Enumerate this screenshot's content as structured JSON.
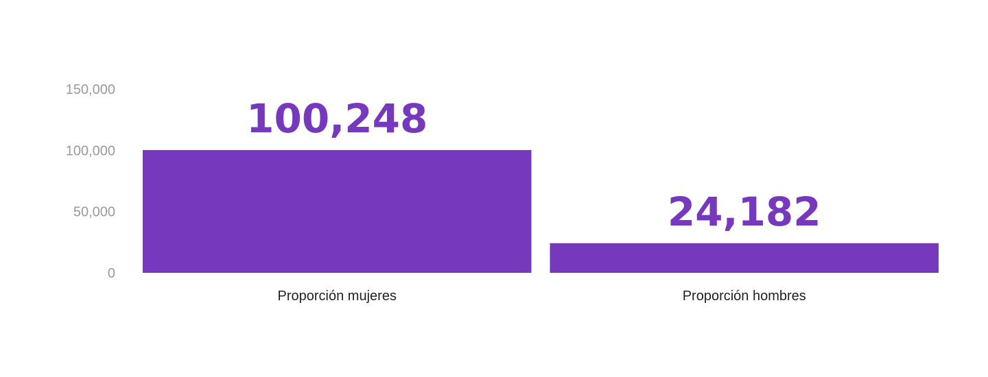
{
  "chart_data": {
    "type": "bar",
    "title": "",
    "xlabel": "",
    "ylabel": "",
    "categories": [
      "Proporción mujeres",
      "Proporción hombres"
    ],
    "values": [
      100248,
      24182
    ],
    "value_labels": [
      "100,248",
      "24,182"
    ],
    "ylim": [
      0,
      150000
    ],
    "yticks": [
      0,
      50000,
      100000,
      150000
    ],
    "ytick_labels": [
      "0",
      "50,000",
      "100,000",
      "150,000"
    ],
    "grid": false,
    "legend": "none",
    "bar_color": "#7639BD",
    "value_label_color": "#7639BD"
  }
}
